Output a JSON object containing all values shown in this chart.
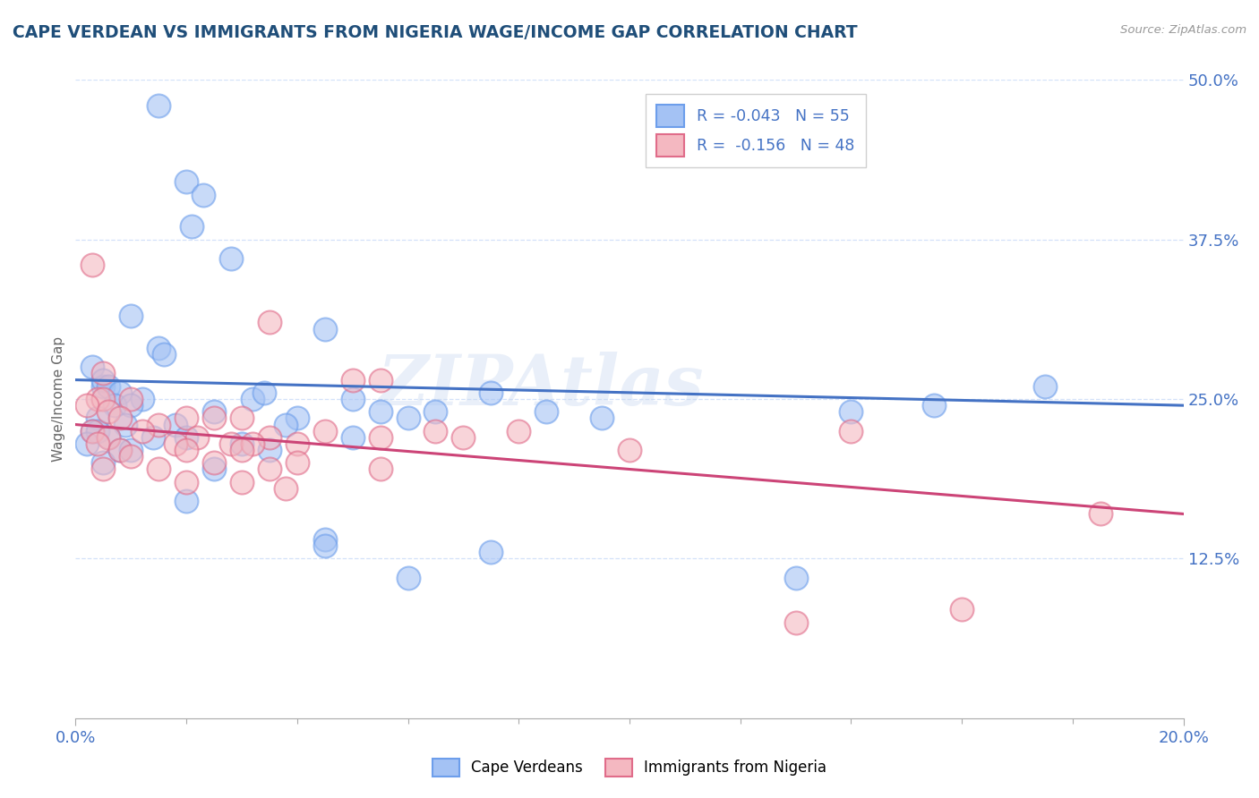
{
  "title": "CAPE VERDEAN VS IMMIGRANTS FROM NIGERIA WAGE/INCOME GAP CORRELATION CHART",
  "source": "Source: ZipAtlas.com",
  "ylabel": "Wage/Income Gap",
  "xlim": [
    0.0,
    20.0
  ],
  "ylim": [
    0.0,
    50.0
  ],
  "yticks": [
    12.5,
    25.0,
    37.5,
    50.0
  ],
  "ytick_labels": [
    "12.5%",
    "25.0%",
    "37.5%",
    "50.0%"
  ],
  "blue_color": "#a4c2f4",
  "pink_color": "#f4b8c1",
  "blue_edge_color": "#6d9eeb",
  "pink_edge_color": "#e06c8a",
  "blue_line_color": "#4472c4",
  "pink_line_color": "#cc4477",
  "legend_label_blue": "Cape Verdeans",
  "legend_label_pink": "Immigrants from Nigeria",
  "title_color": "#1f4e79",
  "axis_label_color": "#4472c4",
  "watermark": "ZIPAtlas",
  "blue_scatter": [
    [
      0.5,
      26.0
    ],
    [
      1.5,
      48.0
    ],
    [
      2.0,
      42.0
    ],
    [
      2.3,
      41.0
    ],
    [
      2.1,
      38.5
    ],
    [
      2.8,
      36.0
    ],
    [
      1.0,
      31.5
    ],
    [
      4.5,
      30.5
    ],
    [
      1.5,
      29.0
    ],
    [
      1.6,
      28.5
    ],
    [
      0.3,
      27.5
    ],
    [
      0.5,
      26.5
    ],
    [
      0.6,
      26.0
    ],
    [
      0.8,
      25.5
    ],
    [
      1.2,
      25.0
    ],
    [
      3.2,
      25.0
    ],
    [
      3.4,
      25.5
    ],
    [
      5.0,
      25.0
    ],
    [
      7.5,
      25.5
    ],
    [
      0.7,
      24.5
    ],
    [
      1.0,
      24.5
    ],
    [
      2.5,
      24.0
    ],
    [
      5.5,
      24.0
    ],
    [
      6.5,
      24.0
    ],
    [
      0.4,
      23.5
    ],
    [
      0.9,
      23.0
    ],
    [
      4.0,
      23.5
    ],
    [
      6.0,
      23.5
    ],
    [
      8.5,
      24.0
    ],
    [
      0.3,
      22.5
    ],
    [
      0.4,
      22.5
    ],
    [
      1.8,
      23.0
    ],
    [
      3.8,
      23.0
    ],
    [
      9.5,
      23.5
    ],
    [
      0.6,
      22.0
    ],
    [
      1.4,
      22.0
    ],
    [
      2.0,
      22.0
    ],
    [
      5.0,
      22.0
    ],
    [
      0.2,
      21.5
    ],
    [
      3.0,
      21.5
    ],
    [
      0.8,
      21.0
    ],
    [
      1.0,
      21.0
    ],
    [
      3.5,
      21.0
    ],
    [
      0.5,
      20.0
    ],
    [
      2.5,
      19.5
    ],
    [
      2.0,
      17.0
    ],
    [
      4.5,
      14.0
    ],
    [
      4.5,
      13.5
    ],
    [
      7.5,
      13.0
    ],
    [
      6.0,
      11.0
    ],
    [
      14.0,
      24.0
    ],
    [
      17.5,
      26.0
    ],
    [
      15.5,
      24.5
    ],
    [
      13.0,
      11.0
    ]
  ],
  "pink_scatter": [
    [
      0.3,
      35.5
    ],
    [
      3.5,
      31.0
    ],
    [
      0.5,
      27.0
    ],
    [
      5.0,
      26.5
    ],
    [
      5.5,
      26.5
    ],
    [
      0.4,
      25.0
    ],
    [
      0.5,
      25.0
    ],
    [
      1.0,
      25.0
    ],
    [
      0.2,
      24.5
    ],
    [
      0.6,
      24.0
    ],
    [
      0.8,
      23.5
    ],
    [
      2.0,
      23.5
    ],
    [
      2.5,
      23.5
    ],
    [
      3.0,
      23.5
    ],
    [
      1.5,
      23.0
    ],
    [
      0.3,
      22.5
    ],
    [
      1.2,
      22.5
    ],
    [
      4.5,
      22.5
    ],
    [
      6.5,
      22.5
    ],
    [
      0.6,
      22.0
    ],
    [
      2.2,
      22.0
    ],
    [
      3.5,
      22.0
    ],
    [
      5.5,
      22.0
    ],
    [
      0.4,
      21.5
    ],
    [
      1.8,
      21.5
    ],
    [
      2.8,
      21.5
    ],
    [
      3.2,
      21.5
    ],
    [
      4.0,
      21.5
    ],
    [
      0.8,
      21.0
    ],
    [
      2.0,
      21.0
    ],
    [
      3.0,
      21.0
    ],
    [
      1.0,
      20.5
    ],
    [
      2.5,
      20.0
    ],
    [
      4.0,
      20.0
    ],
    [
      0.5,
      19.5
    ],
    [
      1.5,
      19.5
    ],
    [
      3.5,
      19.5
    ],
    [
      5.5,
      19.5
    ],
    [
      2.0,
      18.5
    ],
    [
      3.0,
      18.5
    ],
    [
      3.8,
      18.0
    ],
    [
      7.0,
      22.0
    ],
    [
      8.0,
      22.5
    ],
    [
      10.0,
      21.0
    ],
    [
      14.0,
      22.5
    ],
    [
      13.0,
      7.5
    ],
    [
      16.0,
      8.5
    ],
    [
      18.5,
      16.0
    ]
  ]
}
